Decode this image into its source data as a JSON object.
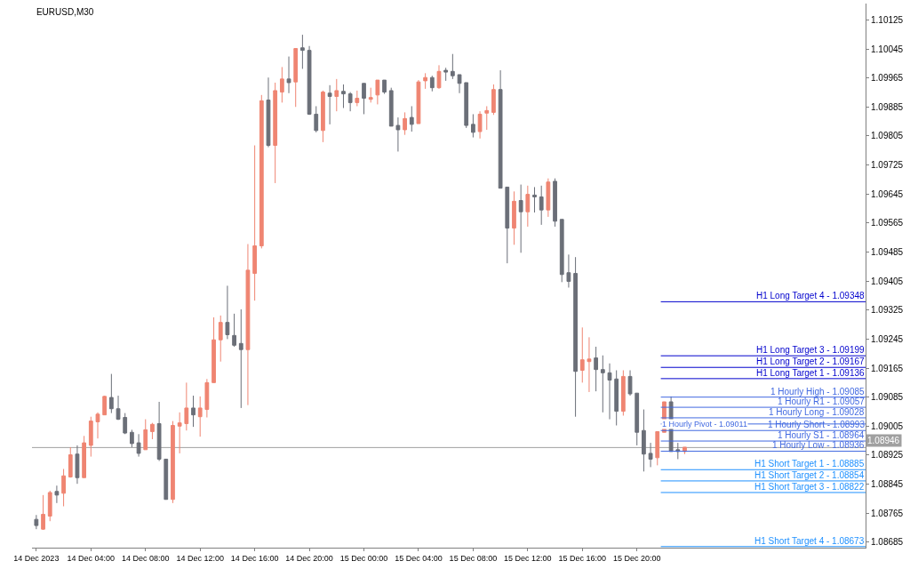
{
  "chart_data": {
    "type": "candlestick",
    "title": "EURUSD,M30",
    "x": [
      "2023-12-14T00:00",
      "2023-12-14T00:30",
      "2023-12-14T01:00",
      "2023-12-14T01:30",
      "2023-12-14T02:00",
      "2023-12-14T02:30",
      "2023-12-14T03:00",
      "2023-12-14T03:30",
      "2023-12-14T04:00",
      "2023-12-14T04:30",
      "2023-12-14T05:00",
      "2023-12-14T05:30",
      "2023-12-14T06:00",
      "2023-12-14T06:30",
      "2023-12-14T07:00",
      "2023-12-14T07:30",
      "2023-12-14T08:00",
      "2023-12-14T08:30",
      "2023-12-14T09:00",
      "2023-12-14T09:30",
      "2023-12-14T10:00",
      "2023-12-14T10:30",
      "2023-12-14T11:00",
      "2023-12-14T11:30",
      "2023-12-14T12:00",
      "2023-12-14T12:30",
      "2023-12-14T13:00",
      "2023-12-14T13:30",
      "2023-12-14T14:00",
      "2023-12-14T14:30",
      "2023-12-14T15:00",
      "2023-12-14T15:30",
      "2023-12-14T16:00",
      "2023-12-14T16:30",
      "2023-12-14T17:00",
      "2023-12-14T17:30",
      "2023-12-14T18:00",
      "2023-12-14T18:30",
      "2023-12-14T19:00",
      "2023-12-14T19:30",
      "2023-12-14T20:00",
      "2023-12-14T20:30",
      "2023-12-14T21:00",
      "2023-12-14T21:30",
      "2023-12-14T22:00",
      "2023-12-14T22:30",
      "2023-12-14T23:00",
      "2023-12-14T23:30",
      "2023-12-15T00:00",
      "2023-12-15T00:30",
      "2023-12-15T01:00",
      "2023-12-15T01:30",
      "2023-12-15T02:00",
      "2023-12-15T02:30",
      "2023-12-15T03:00",
      "2023-12-15T03:30",
      "2023-12-15T04:00",
      "2023-12-15T04:30",
      "2023-12-15T05:00",
      "2023-12-15T05:30",
      "2023-12-15T06:00",
      "2023-12-15T06:30",
      "2023-12-15T07:00",
      "2023-12-15T07:30",
      "2023-12-15T08:00",
      "2023-12-15T08:30",
      "2023-12-15T09:00",
      "2023-12-15T09:30",
      "2023-12-15T10:00",
      "2023-12-15T10:30",
      "2023-12-15T11:00",
      "2023-12-15T11:30",
      "2023-12-15T12:00",
      "2023-12-15T12:30",
      "2023-12-15T13:00",
      "2023-12-15T13:30",
      "2023-12-15T14:00",
      "2023-12-15T14:30",
      "2023-12-15T15:00",
      "2023-12-15T15:30",
      "2023-12-15T16:00",
      "2023-12-15T16:30",
      "2023-12-15T17:00",
      "2023-12-15T17:30",
      "2023-12-15T18:00",
      "2023-12-15T18:30",
      "2023-12-15T19:00",
      "2023-12-15T19:30",
      "2023-12-15T20:00",
      "2023-12-15T20:30",
      "2023-12-15T21:00",
      "2023-12-15T21:30",
      "2023-12-15T22:00",
      "2023-12-15T22:30",
      "2023-12-15T23:00",
      "2023-12-15T23:30"
    ],
    "ohlc": [
      [
        1.08748,
        1.0876,
        1.08721,
        1.08731
      ],
      [
        1.08721,
        1.08815,
        1.08719,
        1.08762
      ],
      [
        1.08757,
        1.08827,
        1.08743,
        1.08822
      ],
      [
        1.08825,
        1.08841,
        1.08793,
        1.08815
      ],
      [
        1.0882,
        1.08887,
        1.08784,
        1.08868
      ],
      [
        1.08865,
        1.08947,
        1.08863,
        1.08926
      ],
      [
        1.08928,
        1.08952,
        1.08846,
        1.08863
      ],
      [
        1.08863,
        1.08978,
        1.08863,
        1.08959
      ],
      [
        1.08952,
        1.09031,
        1.08921,
        1.09019
      ],
      [
        1.09017,
        1.09043,
        1.08971,
        1.09038
      ],
      [
        1.09036,
        1.09089,
        1.09036,
        1.09087
      ],
      [
        1.09084,
        1.09149,
        1.09041,
        1.09053
      ],
      [
        1.09053,
        1.09089,
        1.09022,
        1.09024
      ],
      [
        1.09029,
        1.09041,
        1.08983,
        1.08986
      ],
      [
        1.08988,
        1.08995,
        1.08947,
        1.08957
      ],
      [
        1.08959,
        1.08983,
        1.08921,
        1.0893
      ],
      [
        1.0894,
        1.09024,
        1.0894,
        1.08995
      ],
      [
        1.0899,
        1.09014,
        1.08969,
        1.0901
      ],
      [
        1.09012,
        1.09072,
        1.08909,
        1.08914
      ],
      [
        1.08914,
        1.08914,
        1.08803,
        1.08803
      ],
      [
        1.08803,
        1.09019,
        1.08793,
        1.09007
      ],
      [
        1.09005,
        1.09043,
        1.0893,
        1.09014
      ],
      [
        1.09012,
        1.09125,
        1.08993,
        1.09055
      ],
      [
        1.09055,
        1.09089,
        1.09003,
        1.09036
      ],
      [
        1.09031,
        1.09087,
        1.08976,
        1.09055
      ],
      [
        1.09051,
        1.09135,
        1.09029,
        1.09125
      ],
      [
        1.09125,
        1.09305,
        1.09125,
        1.09243
      ],
      [
        1.09243,
        1.0931,
        1.09183,
        1.09291
      ],
      [
        1.09291,
        1.09392,
        1.09245,
        1.09257
      ],
      [
        1.09255,
        1.09315,
        1.09224,
        1.09228
      ],
      [
        1.09233,
        1.09327,
        1.09055,
        1.09216
      ],
      [
        1.09216,
        1.09507,
        1.09063,
        1.09435
      ],
      [
        1.09426,
        1.09779,
        1.09351,
        1.09502
      ],
      [
        1.09502,
        1.09918,
        1.09495,
        1.09902
      ],
      [
        1.09904,
        1.09966,
        1.09774,
        1.09779
      ],
      [
        1.09779,
        1.09952,
        1.09675,
        1.0993
      ],
      [
        1.09926,
        1.09995,
        1.09897,
        1.09962
      ],
      [
        1.09962,
        1.10024,
        1.09923,
        1.09952
      ],
      [
        1.09954,
        1.10046,
        1.09885,
        1.10046
      ],
      [
        1.10048,
        1.10084,
        1.0999,
        1.10041
      ],
      [
        1.10041,
        1.10053,
        1.09863,
        1.09865
      ],
      [
        1.09865,
        1.09887,
        1.09815,
        1.0982
      ],
      [
        1.0982,
        1.0993,
        1.09788,
        1.09926
      ],
      [
        1.09923,
        1.09945,
        1.09837,
        1.09914
      ],
      [
        1.09914,
        1.09962,
        1.09873,
        1.0993
      ],
      [
        1.09928,
        1.09947,
        1.09882,
        1.09921
      ],
      [
        1.09921,
        1.09926,
        1.09873,
        1.09897
      ],
      [
        1.09897,
        1.0993,
        1.09887,
        1.09909
      ],
      [
        1.0995,
        1.0995,
        1.09865,
        1.09909
      ],
      [
        1.09906,
        1.09938,
        1.09897,
        1.09911
      ],
      [
        1.09918,
        1.09959,
        1.09892,
        1.09959
      ],
      [
        1.09959,
        1.09959,
        1.09921,
        1.09926
      ],
      [
        1.0993,
        1.09938,
        1.09832,
        1.09832
      ],
      [
        1.09834,
        1.09856,
        1.09762,
        1.09822
      ],
      [
        1.09822,
        1.0987,
        1.09808,
        1.09853
      ],
      [
        1.09856,
        1.09887,
        1.09817,
        1.09837
      ],
      [
        1.09839,
        1.09959,
        1.09839,
        1.09954
      ],
      [
        1.09957,
        1.09978,
        1.09935,
        1.09966
      ],
      [
        1.09966,
        1.09971,
        1.09928,
        1.09938
      ],
      [
        1.09938,
        1.1,
        1.09935,
        1.09983
      ],
      [
        1.09986,
        1.09993,
        1.09957,
        1.09981
      ],
      [
        1.09983,
        1.10031,
        1.09962,
        1.09971
      ],
      [
        1.09974,
        1.09974,
        1.09923,
        1.0995
      ],
      [
        1.09952,
        1.09952,
        1.09827,
        1.09834
      ],
      [
        1.09837,
        1.09865,
        1.09801,
        1.09815
      ],
      [
        1.09817,
        1.09873,
        1.09798,
        1.09865
      ],
      [
        1.09868,
        1.09887,
        1.09822,
        1.09875
      ],
      [
        1.0987,
        1.09947,
        1.09863,
        1.09933
      ],
      [
        1.09933,
        1.09986,
        1.09661,
        1.09661
      ],
      [
        1.09664,
        1.09664,
        1.09454,
        1.09551
      ],
      [
        1.09551,
        1.09652,
        1.09505,
        1.09625
      ],
      [
        1.09627,
        1.09671,
        1.09483,
        1.09596
      ],
      [
        1.09596,
        1.09668,
        1.09555,
        1.09644
      ],
      [
        1.09642,
        1.09664,
        1.09594,
        1.09637
      ],
      [
        1.09637,
        1.09668,
        1.0956,
        1.09601
      ],
      [
        1.09601,
        1.09688,
        1.09582,
        1.09678
      ],
      [
        1.0968,
        1.09688,
        1.09555,
        1.0957
      ],
      [
        1.09575,
        1.09575,
        1.09402,
        1.09423
      ],
      [
        1.09428,
        1.09478,
        1.09387,
        1.09404
      ],
      [
        1.09426,
        1.09471,
        1.09031,
        1.09156
      ],
      [
        1.09159,
        1.09277,
        1.09125,
        1.09188
      ],
      [
        1.09183,
        1.0925,
        1.09099,
        1.0919
      ],
      [
        1.09193,
        1.09224,
        1.09101,
        1.09161
      ],
      [
        1.09161,
        1.092,
        1.09043,
        1.09152
      ],
      [
        1.09152,
        1.09178,
        1.09024,
        1.09132
      ],
      [
        1.09135,
        1.09159,
        1.09007,
        1.09046
      ],
      [
        1.09046,
        1.09159,
        1.09034,
        1.09142
      ],
      [
        1.09142,
        1.09159,
        1.09089,
        1.09094
      ],
      [
        1.09096,
        1.09096,
        1.08952,
        1.08988
      ],
      [
        1.08993,
        1.09051,
        1.0888,
        1.08928
      ],
      [
        1.0893,
        1.08959,
        1.08892,
        1.08914
      ],
      [
        1.08918,
        1.0899,
        1.08897,
        1.0899
      ],
      [
        1.08988,
        1.09072,
        1.08988,
        1.09072
      ],
      [
        1.09072,
        1.09087,
        1.08935,
        1.08935
      ],
      [
        1.0894,
        1.08959,
        1.08914,
        1.08935
      ],
      [
        1.08935,
        1.08947,
        1.08928,
        1.08947
      ]
    ],
    "colors": [
      "#6b6f78",
      "#ef8572",
      "#ef8572",
      "#6b6f78",
      "#ef8572",
      "#ef8572",
      "#6b6f78",
      "#ef8572",
      "#ef8572",
      "#ef8572",
      "#ef8572",
      "#6b6f78",
      "#6b6f78",
      "#6b6f78",
      "#6b6f78",
      "#6b6f78",
      "#ef8572",
      "#ef8572",
      "#6b6f78",
      "#6b6f78",
      "#ef8572",
      "#ef8572",
      "#ef8572",
      "#6b6f78",
      "#ef8572",
      "#ef8572",
      "#ef8572",
      "#ef8572",
      "#6b6f78",
      "#6b6f78",
      "#6b6f78",
      "#ef8572",
      "#ef8572",
      "#ef8572",
      "#6b6f78",
      "#ef8572",
      "#ef8572",
      "#6b6f78",
      "#ef8572",
      "#6b6f78",
      "#6b6f78",
      "#6b6f78",
      "#ef8572",
      "#6b6f78",
      "#ef8572",
      "#6b6f78",
      "#6b6f78",
      "#ef8572",
      "#6b6f78",
      "#ef8572",
      "#ef8572",
      "#6b6f78",
      "#6b6f78",
      "#6b6f78",
      "#ef8572",
      "#6b6f78",
      "#ef8572",
      "#ef8572",
      "#6b6f78",
      "#ef8572",
      "#6b6f78",
      "#6b6f78",
      "#6b6f78",
      "#6b6f78",
      "#6b6f78",
      "#ef8572",
      "#ef8572",
      "#ef8572",
      "#6b6f78",
      "#6b6f78",
      "#ef8572",
      "#6b6f78",
      "#ef8572",
      "#6b6f78",
      "#6b6f78",
      "#ef8572",
      "#6b6f78",
      "#6b6f78",
      "#6b6f78",
      "#6b6f78",
      "#ef8572",
      "#ef8572",
      "#6b6f78",
      "#6b6f78",
      "#6b6f78",
      "#6b6f78",
      "#ef8572",
      "#6b6f78",
      "#6b6f78",
      "#6b6f78",
      "#6b6f78",
      "#ef8572",
      "#ef8572",
      "#6b6f78",
      "#6b6f78",
      "#ef8572"
    ],
    "xlim": [
      "2023-12-13T23:41",
      "2023-12-16T12:45"
    ],
    "xticks": [
      {
        "value": "2023-12-14T00:00",
        "label": "14 Dec 2023"
      },
      {
        "value": "2023-12-14T04:00",
        "label": "14 Dec 04:00"
      },
      {
        "value": "2023-12-14T08:00",
        "label": "14 Dec 08:00"
      },
      {
        "value": "2023-12-14T12:00",
        "label": "14 Dec 12:00"
      },
      {
        "value": "2023-12-14T16:00",
        "label": "14 Dec 16:00"
      },
      {
        "value": "2023-12-14T20:00",
        "label": "14 Dec 20:00"
      },
      {
        "value": "2023-12-15T00:00",
        "label": "15 Dec 00:00"
      },
      {
        "value": "2023-12-15T04:00",
        "label": "15 Dec 04:00"
      },
      {
        "value": "2023-12-15T08:00",
        "label": "15 Dec 08:00"
      },
      {
        "value": "2023-12-15T12:00",
        "label": "15 Dec 12:00"
      },
      {
        "value": "2023-12-15T16:00",
        "label": "15 Dec 16:00"
      },
      {
        "value": "2023-12-15T20:00",
        "label": "15 Dec 20:00"
      }
    ],
    "ylim": [
      1.0867,
      1.1017
    ],
    "yticks": [
      1.10125,
      1.10045,
      1.09965,
      1.09885,
      1.09805,
      1.09725,
      1.09645,
      1.09565,
      1.09485,
      1.09405,
      1.09325,
      1.09245,
      1.09165,
      1.09085,
      1.09005,
      1.08925,
      1.08845,
      1.08765,
      1.08685
    ],
    "ref_lines": [
      {
        "axis": "y",
        "value": 1.09348,
        "label": "H1 Long Target 4 - 1.09348",
        "color": "#0000cd"
      },
      {
        "axis": "y",
        "value": 1.09199,
        "label": "H1 Long Target 3 - 1.09199",
        "color": "#0000cd"
      },
      {
        "axis": "y",
        "value": 1.09167,
        "label": "H1 Long Target 2 - 1.09167",
        "color": "#0000cd"
      },
      {
        "axis": "y",
        "value": 1.09136,
        "label": "H1 Long Target 1 - 1.09136",
        "color": "#0000cd"
      },
      {
        "axis": "y",
        "value": 1.09085,
        "label": "1 Hourly High - 1.09085",
        "color": "#4169e1"
      },
      {
        "axis": "y",
        "value": 1.09057,
        "label": "1 Hourly R1 - 1.09057",
        "color": "#4169e1"
      },
      {
        "axis": "y",
        "value": 1.09028,
        "label": "1 Hourly Long - 1.09028",
        "color": "#4169e1"
      },
      {
        "axis": "y",
        "value": 1.09011,
        "label": "1 Hourly Pivot - 1.09011",
        "color": "#4169e1"
      },
      {
        "axis": "y",
        "value": 1.08993,
        "label": "1 Hourly Short - 1.08993",
        "color": "#4169e1"
      },
      {
        "axis": "y",
        "value": 1.08964,
        "label": "1 Hourly S1 - 1.08964",
        "color": "#4169e1"
      },
      {
        "axis": "y",
        "value": 1.08936,
        "label": "1 Hourly Low - 1.08936",
        "color": "#4169e1"
      },
      {
        "axis": "y",
        "value": 1.08885,
        "label": "H1 Short Target 1 - 1.08885",
        "color": "#1e90ff"
      },
      {
        "axis": "y",
        "value": 1.08854,
        "label": "H1 Short Target 2 - 1.08854",
        "color": "#1e90ff"
      },
      {
        "axis": "y",
        "value": 1.08822,
        "label": "H1 Short Target 3 - 1.08822",
        "color": "#1e90ff"
      },
      {
        "axis": "y",
        "value": 1.08673,
        "label": "H1 Short Target 4 - 1.08673",
        "color": "#1e90ff"
      },
      {
        "axis": "y",
        "value": 1.08946,
        "label": "1.08946",
        "color": "#a0a0a0"
      }
    ]
  }
}
